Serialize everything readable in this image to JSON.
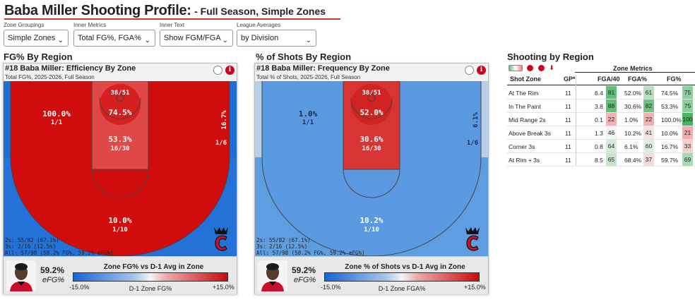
{
  "header": {
    "title": "Baba Miller Shooting Profile:",
    "subtitle": "- Full Season, Simple Zones"
  },
  "controls": [
    {
      "label": "Zone Groupings",
      "value": "Simple Zones"
    },
    {
      "label": "Inner Metrics",
      "value": "Total FG%, FGA%"
    },
    {
      "label": "Inner Text",
      "value": "Show FGM/FGA"
    },
    {
      "label": "League Averages",
      "value": "by Division"
    }
  ],
  "sections": {
    "fg_by_region": "FG% By Region",
    "shots_by_region": "% of Shots By Region",
    "shooting_by_region": "Shooting by Region"
  },
  "panel_efficiency": {
    "title": "#18 Baba Miller: Efficiency By Zone",
    "subtitle": "Total FG%, 2025-2026, Full Season",
    "zones": {
      "rim_count": "38/51",
      "rim_pct": "74.5%",
      "paint_pct": "53.3%",
      "paint_count": "16/30",
      "mid_pct": "100.0%",
      "mid_count": "1/1",
      "corner_pct": "16.7%",
      "corner_count": "1/6",
      "above_pct": "10.0%",
      "above_count": "1/10"
    },
    "stats": [
      "2s: 55/82 (67.1%)",
      "3s: 2/16 (12.5%)",
      "All: 57/98 (58.2% FG%, 59.2% eFG%)"
    ],
    "efg_value": "59.2%",
    "efg_label": "eFG%",
    "legend_title": "Zone FG% vs D-1 Avg in Zone",
    "legend_min": "-15.0%",
    "legend_mid": "D-1 Zone FG%",
    "legend_max": "+15.0%",
    "colors": {
      "rim": "#d61f1f",
      "paint": "#e04848",
      "mid": "#d00c0c",
      "corner": "#1d6fd6",
      "above": "#2472d8"
    }
  },
  "panel_frequency": {
    "title": "#18 Baba Miller: Frequency By Zone",
    "subtitle": "Total % of Shots, 2025-2026, Full Season",
    "zones": {
      "rim_count": "38/51",
      "rim_pct": "52.0%",
      "paint_pct": "30.6%",
      "paint_count": "16/30",
      "mid_pct": "1.0%",
      "mid_count": "1/1",
      "corner_pct": "6.1%",
      "corner_count": "1/6",
      "above_pct": "10.2%",
      "above_count": "1/10"
    },
    "stats": [
      "2s: 55/82 (67.1%)",
      "3s: 2/16 (12.5%)",
      "All: 57/98 (58.2% FG%, 59.2% eFG%)"
    ],
    "efg_value": "59.2%",
    "efg_label": "eFG%",
    "legend_title": "Zone % of Shots vs D-1 Avg in Zone",
    "legend_min": "-15.0%",
    "legend_mid": "D-1 Zone FGA%",
    "legend_max": "+15.0%",
    "colors": {
      "rim": "#d22222",
      "paint": "#d93434",
      "mid": "#5b9ae0",
      "corner": "#b8cfe9",
      "above": "#5f9de1"
    }
  },
  "metrics": {
    "group_title": "Zone Metrics",
    "columns": [
      "Shot Zone",
      "GP*",
      "FGA/40",
      "FGA%",
      "FG%"
    ],
    "rows": [
      {
        "zone": "At The Rim",
        "gp": "11",
        "fga40": "6.4",
        "fga40_pct": "81",
        "fga40_color": "#63be7b",
        "fgapct": "52.0%",
        "fgapct_pct": "61",
        "fgapct_color": "#b5dfc0",
        "fg": "74.5%",
        "fg_pct": "75",
        "fg_color": "#8fcf9f"
      },
      {
        "zone": "In The Paint",
        "gp": "11",
        "fga40": "3.8",
        "fga40_pct": "88",
        "fga40_color": "#63be7b",
        "fgapct": "30.6%",
        "fgapct_pct": "82",
        "fgapct_color": "#6ec383",
        "fg": "53.3%",
        "fg_pct": "75",
        "fg_color": "#8fcf9f"
      },
      {
        "zone": "Mid Range 2s",
        "gp": "11",
        "fga40": "0.1",
        "fga40_pct": "22",
        "fga40_color": "#f3b2b2",
        "fgapct": "1.0%",
        "fgapct_pct": "22",
        "fgapct_color": "#f3b2b2",
        "fg": "100.0%",
        "fg_pct": "100",
        "fg_color": "#4cb363"
      },
      {
        "zone": "Above Break 3s",
        "gp": "11",
        "fga40": "1.3",
        "fga40_pct": "46",
        "fga40_color": "#f3f3f3",
        "fgapct": "10.2%",
        "fgapct_pct": "41",
        "fgapct_color": "#f6e4e4",
        "fg": "10.0%",
        "fg_pct": "21",
        "fg_color": "#f2aeae"
      },
      {
        "zone": "Corner 3s",
        "gp": "11",
        "fga40": "0.8",
        "fga40_pct": "64",
        "fga40_color": "#d5ecda",
        "fgapct": "6.1%",
        "fgapct_pct": "60",
        "fgapct_color": "#dcefe0",
        "fg": "16.7%",
        "fg_pct": "33",
        "fg_color": "#f6d0d0"
      },
      {
        "zone": "At Rim + 3s",
        "gp": "11",
        "fga40": "8.5",
        "fga40_pct": "65",
        "fga40_color": "#c7e6cf",
        "fgapct": "68.4%",
        "fgapct_pct": "37",
        "fgapct_color": "#f4dada",
        "fg": "59.7%",
        "fg_pct": "69",
        "fg_color": "#a9dab5"
      }
    ]
  }
}
